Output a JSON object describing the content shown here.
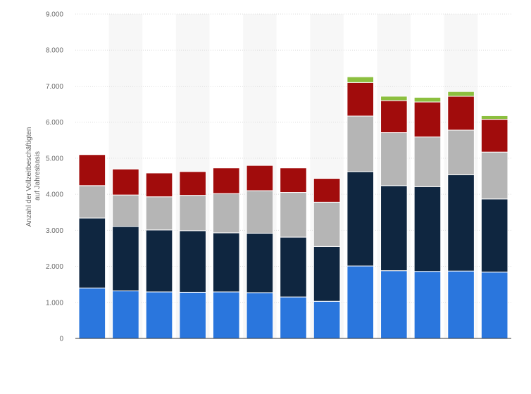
{
  "chart_data": {
    "type": "bar",
    "stacked": true,
    "title": "",
    "xlabel": "",
    "ylabel_lines": [
      "Anzahl der Vollzeitbeschäftigten",
      "auf Jahresbasis"
    ],
    "ylim": [
      0,
      9000
    ],
    "yticks": [
      0,
      1000,
      2000,
      3000,
      4000,
      5000,
      6000,
      7000,
      8000,
      9000
    ],
    "ytick_labels": [
      "0",
      "1.000",
      "2.000",
      "3.000",
      "4.000",
      "5.000",
      "6.000",
      "7.000",
      "8.000",
      "9.000"
    ],
    "grid": true,
    "legend": "none",
    "categories": [
      "",
      "",
      "",
      "",
      "",
      "",
      "",
      "",
      "",
      "",
      "",
      "",
      ""
    ],
    "series": [
      {
        "color": "#2a76dd",
        "values": [
          1400,
          1320,
          1290,
          1280,
          1290,
          1270,
          1150,
          1030,
          2010,
          1880,
          1860,
          1870,
          1840
        ]
      },
      {
        "color": "#0f2640",
        "values": [
          1940,
          1790,
          1720,
          1710,
          1640,
          1650,
          1660,
          1520,
          2620,
          2360,
          2350,
          2670,
          2030
        ]
      },
      {
        "color": "#b5b5b5",
        "values": [
          900,
          870,
          920,
          980,
          1090,
          1180,
          1240,
          1230,
          1540,
          1470,
          1380,
          1240,
          1300
        ]
      },
      {
        "color": "#a10c0c",
        "values": [
          860,
          720,
          660,
          660,
          710,
          700,
          680,
          660,
          930,
          890,
          970,
          940,
          910
        ]
      },
      {
        "color": "#8cbf3f",
        "values": [
          0,
          0,
          0,
          0,
          0,
          0,
          0,
          0,
          160,
          120,
          130,
          130,
          100
        ]
      }
    ]
  }
}
